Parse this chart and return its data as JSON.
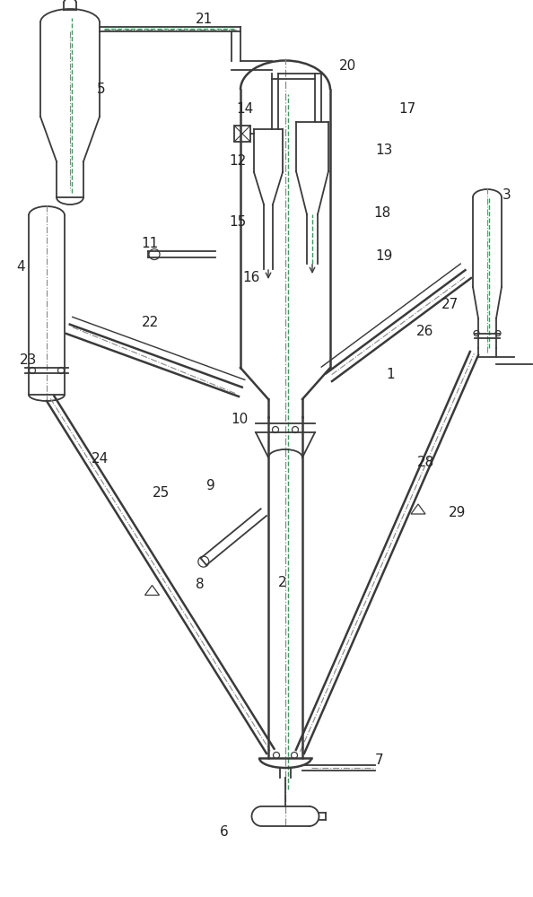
{
  "line_color": "#3a3a3a",
  "background": "#ffffff",
  "lw": 1.3,
  "tlw": 1.8,
  "fs": 11
}
